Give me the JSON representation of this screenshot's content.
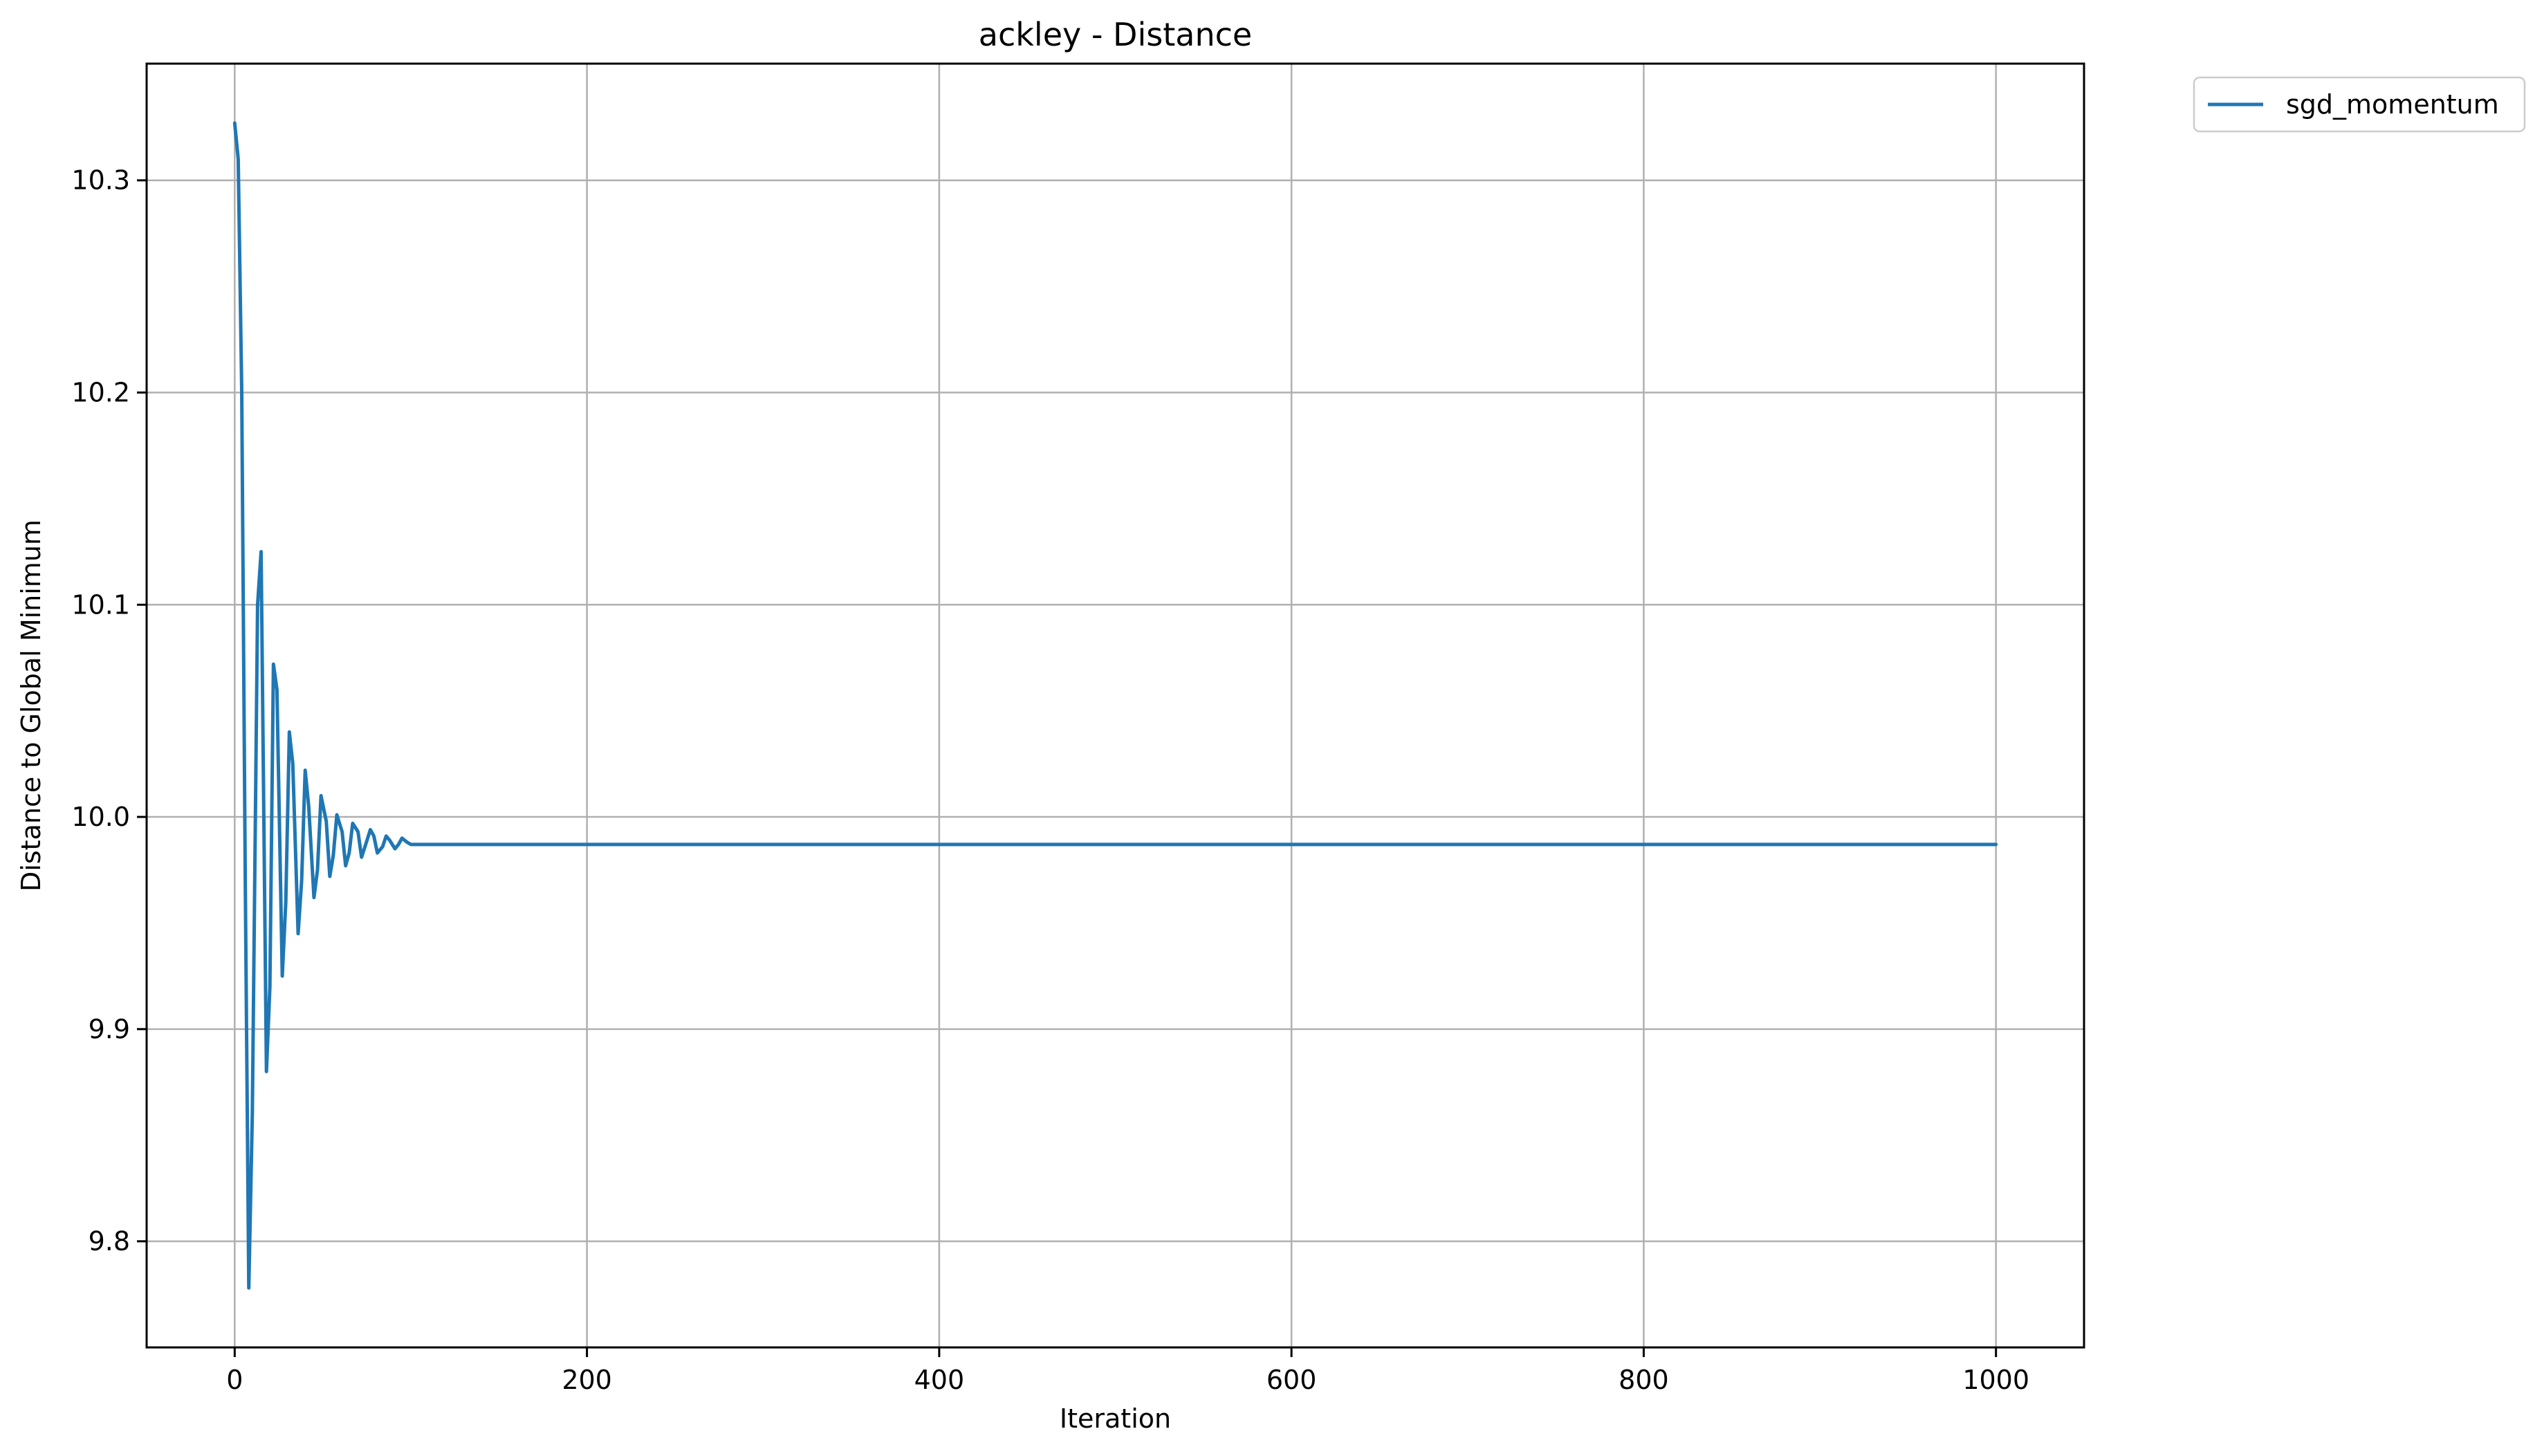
{
  "chart_data": {
    "type": "line",
    "title": "ackley - Distance",
    "xlabel": "Iteration",
    "ylabel": "Distance to Global Minimum",
    "xlim": [
      -50,
      1050
    ],
    "ylim": [
      9.75,
      10.355
    ],
    "x_ticks": [
      0,
      200,
      400,
      600,
      800,
      1000
    ],
    "x_tick_labels": [
      "0",
      "200",
      "400",
      "600",
      "800",
      "1000"
    ],
    "y_ticks": [
      9.8,
      9.9,
      10.0,
      10.1,
      10.2,
      10.3
    ],
    "y_tick_labels": [
      "9.8",
      "9.9",
      "10.0",
      "10.1",
      "10.2",
      "10.3"
    ],
    "grid": true,
    "legend_position": "outside-top-right",
    "series": [
      {
        "name": "sgd_momentum",
        "color": "#1f77b4",
        "x": [
          0,
          2,
          4,
          6,
          8,
          10,
          13,
          15,
          18,
          20,
          22,
          24,
          27,
          29,
          31,
          33,
          36,
          38,
          40,
          42,
          45,
          47,
          49,
          52,
          54,
          56,
          58,
          61,
          63,
          65,
          67,
          70,
          72,
          74,
          77,
          79,
          81,
          84,
          86,
          88,
          91,
          93,
          95,
          98,
          100,
          120,
          140,
          160,
          180,
          200,
          250,
          300,
          350,
          400,
          450,
          500,
          550,
          600,
          650,
          700,
          750,
          800,
          850,
          900,
          950,
          1000
        ],
        "y": [
          10.327,
          10.31,
          10.2,
          9.97,
          9.778,
          9.86,
          10.1,
          10.125,
          9.88,
          9.92,
          10.072,
          10.06,
          9.925,
          9.96,
          10.04,
          10.025,
          9.945,
          9.97,
          10.022,
          10.005,
          9.962,
          9.975,
          10.01,
          9.998,
          9.972,
          9.982,
          10.001,
          9.993,
          9.977,
          9.983,
          9.997,
          9.993,
          9.981,
          9.986,
          9.994,
          9.991,
          9.983,
          9.986,
          9.991,
          9.989,
          9.985,
          9.987,
          9.99,
          9.988,
          9.987,
          9.987,
          9.987,
          9.987,
          9.987,
          9.987,
          9.987,
          9.987,
          9.987,
          9.987,
          9.987,
          9.987,
          9.987,
          9.987,
          9.987,
          9.987,
          9.987,
          9.987,
          9.987,
          9.987,
          9.987,
          9.987
        ]
      }
    ]
  }
}
